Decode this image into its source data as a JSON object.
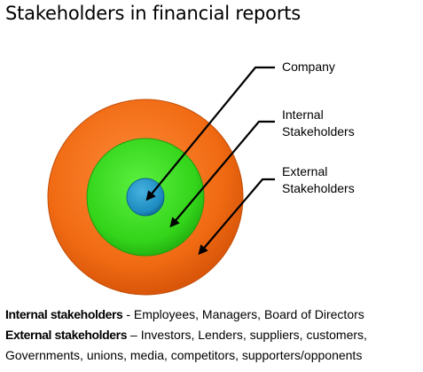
{
  "title": "Stakeholders in financial reports",
  "diagram": {
    "rings": [
      {
        "name": "External Stakeholders",
        "color": "#f06a12"
      },
      {
        "name": "Internal Stakeholders",
        "color": "#33d41a"
      },
      {
        "name": "Company",
        "color": "#1d8bbf"
      }
    ],
    "labels": {
      "company": "Company",
      "internal": [
        "Internal",
        "Stakeholders"
      ],
      "external": [
        "External",
        "Stakeholders"
      ]
    }
  },
  "description": {
    "internal_term": "Internal stakeholders",
    "internal_text": " - Employees, Managers, Board of Directors",
    "external_term": "External stakeholders",
    "external_text": " – Investors, Lenders, suppliers, customers,",
    "external_text_2": "Governments, unions, media, competitors, supporters/opponents"
  }
}
